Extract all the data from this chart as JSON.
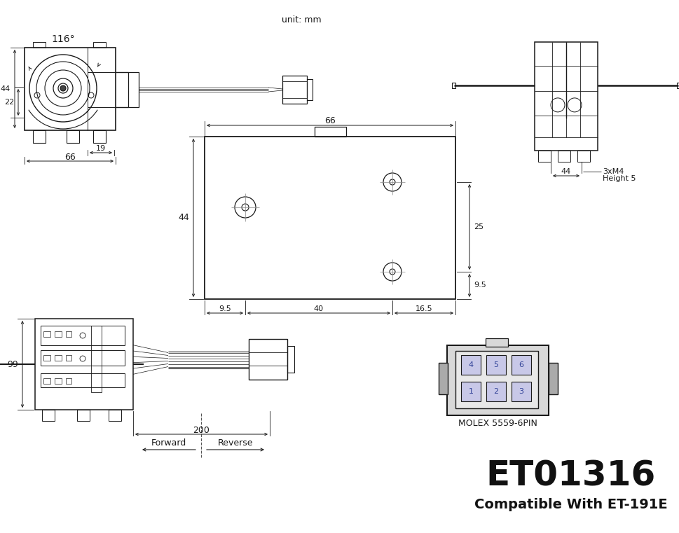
{
  "bg_color": "#ffffff",
  "lc": "#1a1a1a",
  "dc": "#1a1a1a",
  "title": "ET01316",
  "subtitle": "Compatible With ET-191E",
  "unit_label": "unit: mm",
  "top_angle_label": "116°",
  "dim_44_top": "44",
  "dim_22_top": "22",
  "dim_19_top": "19",
  "dim_66_top": "66",
  "dim_66_mid": "66",
  "dim_44_mid": "44",
  "dim_9p5_mid": "9.5",
  "dim_40_mid": "40",
  "dim_16p5_mid": "16.5",
  "dim_25_mid": "25",
  "dim_9p5_right": "9.5",
  "dim_44_right": "44",
  "dim_3xm4": "3xM4",
  "dim_height5": "Height 5",
  "dim_99": "99",
  "dim_200": "200",
  "forward": "Forward",
  "reverse": "Reverse",
  "molex": "MOLEX 5559-6PIN"
}
